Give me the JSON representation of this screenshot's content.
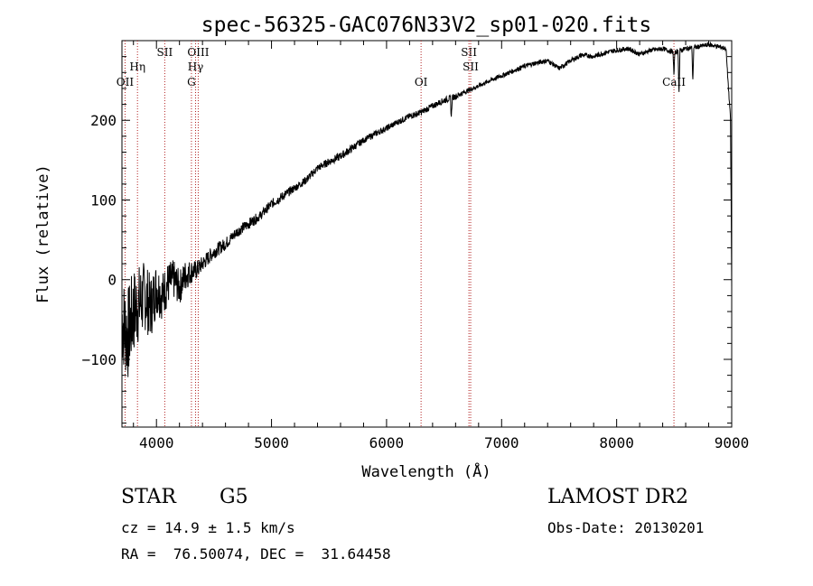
{
  "chart_data": {
    "type": "line",
    "title": "spec-56325-GAC076N33V2_sp01-020.fits",
    "xlabel": "Wavelength (Å)",
    "ylabel": "Flux (relative)",
    "xlim": [
      3700,
      9000
    ],
    "ylim": [
      -185,
      300
    ],
    "xticks": [
      4000,
      5000,
      6000,
      7000,
      8000,
      9000
    ],
    "xtick_labels": [
      "4000",
      "5000",
      "6000",
      "7000",
      "8000",
      "9000"
    ],
    "yticks": [
      -100,
      0,
      100,
      200
    ],
    "ytick_labels": [
      "−100",
      "0",
      "100",
      "200"
    ],
    "series": [
      {
        "x": [
          3700,
          3750,
          3800,
          3850,
          3900,
          3950,
          4000,
          4050,
          4100,
          4150,
          4200,
          4250,
          4300,
          4350,
          4400,
          4500,
          4600,
          4700,
          4800,
          4900,
          5000,
          5100,
          5200,
          5300,
          5400,
          5500,
          5600,
          5700,
          5800,
          5900,
          6000,
          6100,
          6200,
          6300,
          6400,
          6500,
          6600,
          6700,
          6800,
          6900,
          7000,
          7100,
          7200,
          7300,
          7400,
          7500,
          7600,
          7700,
          7800,
          7900,
          8000,
          8100,
          8200,
          8300,
          8400,
          8500,
          8600,
          8700,
          8800,
          8900,
          8950,
          8990,
          9000
        ],
        "y": [
          -50,
          -70,
          -40,
          -30,
          -20,
          -35,
          -10,
          -20,
          -5,
          0,
          -10,
          5,
          10,
          12,
          20,
          35,
          45,
          60,
          70,
          80,
          95,
          105,
          115,
          125,
          140,
          148,
          155,
          165,
          175,
          183,
          190,
          198,
          205,
          210,
          218,
          225,
          230,
          237,
          243,
          250,
          256,
          262,
          268,
          272,
          275,
          265,
          275,
          282,
          280,
          285,
          288,
          290,
          283,
          288,
          290,
          285,
          290,
          292,
          295,
          292,
          290,
          200,
          -10
        ],
        "noise": [
          60,
          60,
          55,
          50,
          45,
          40,
          35,
          30,
          28,
          25,
          22,
          20,
          15,
          12,
          10,
          9,
          8,
          7,
          7,
          6,
          6,
          6,
          5,
          5,
          5,
          5,
          5,
          5,
          4,
          4,
          4,
          4,
          4,
          4,
          4,
          4,
          4,
          3,
          3,
          3,
          3,
          3,
          3,
          3,
          3,
          3,
          3,
          3,
          3,
          3,
          3,
          3,
          3,
          3,
          3,
          3,
          3,
          3,
          3,
          3,
          3,
          3,
          3
        ],
        "absorption": [
          {
            "x": 6563,
            "depth": 25
          },
          {
            "x": 8498,
            "depth": 30
          },
          {
            "x": 8542,
            "depth": 55
          },
          {
            "x": 8662,
            "depth": 45
          }
        ],
        "color": "#000000"
      }
    ],
    "line_markers": {
      "color": "#b22222",
      "lines": [
        {
          "x": 3727,
          "label": "OII",
          "row": 3
        },
        {
          "x": 3835,
          "label": "Hη",
          "row": 2
        },
        {
          "x": 4072,
          "label": "SII",
          "row": 1
        },
        {
          "x": 4304,
          "label": "G",
          "row": 3
        },
        {
          "x": 4340,
          "label": "Hγ",
          "row": 2
        },
        {
          "x": 4363,
          "label": "OIII",
          "row": 1
        },
        {
          "x": 6300,
          "label": "OI",
          "row": 3
        },
        {
          "x": 6716,
          "label": "SII",
          "row": 1
        },
        {
          "x": 6731,
          "label": "SII",
          "row": 2
        },
        {
          "x": 8498,
          "label": "CaII",
          "row": 3
        }
      ]
    }
  },
  "footer": {
    "object_class": "STAR",
    "subclass": "G5",
    "survey": "LAMOST DR2",
    "cz": "cz = 14.9 ± 1.5 km/s",
    "obs_date": "Obs-Date: 20130201",
    "radec": "RA =  76.50074, DEC =  31.64458"
  }
}
